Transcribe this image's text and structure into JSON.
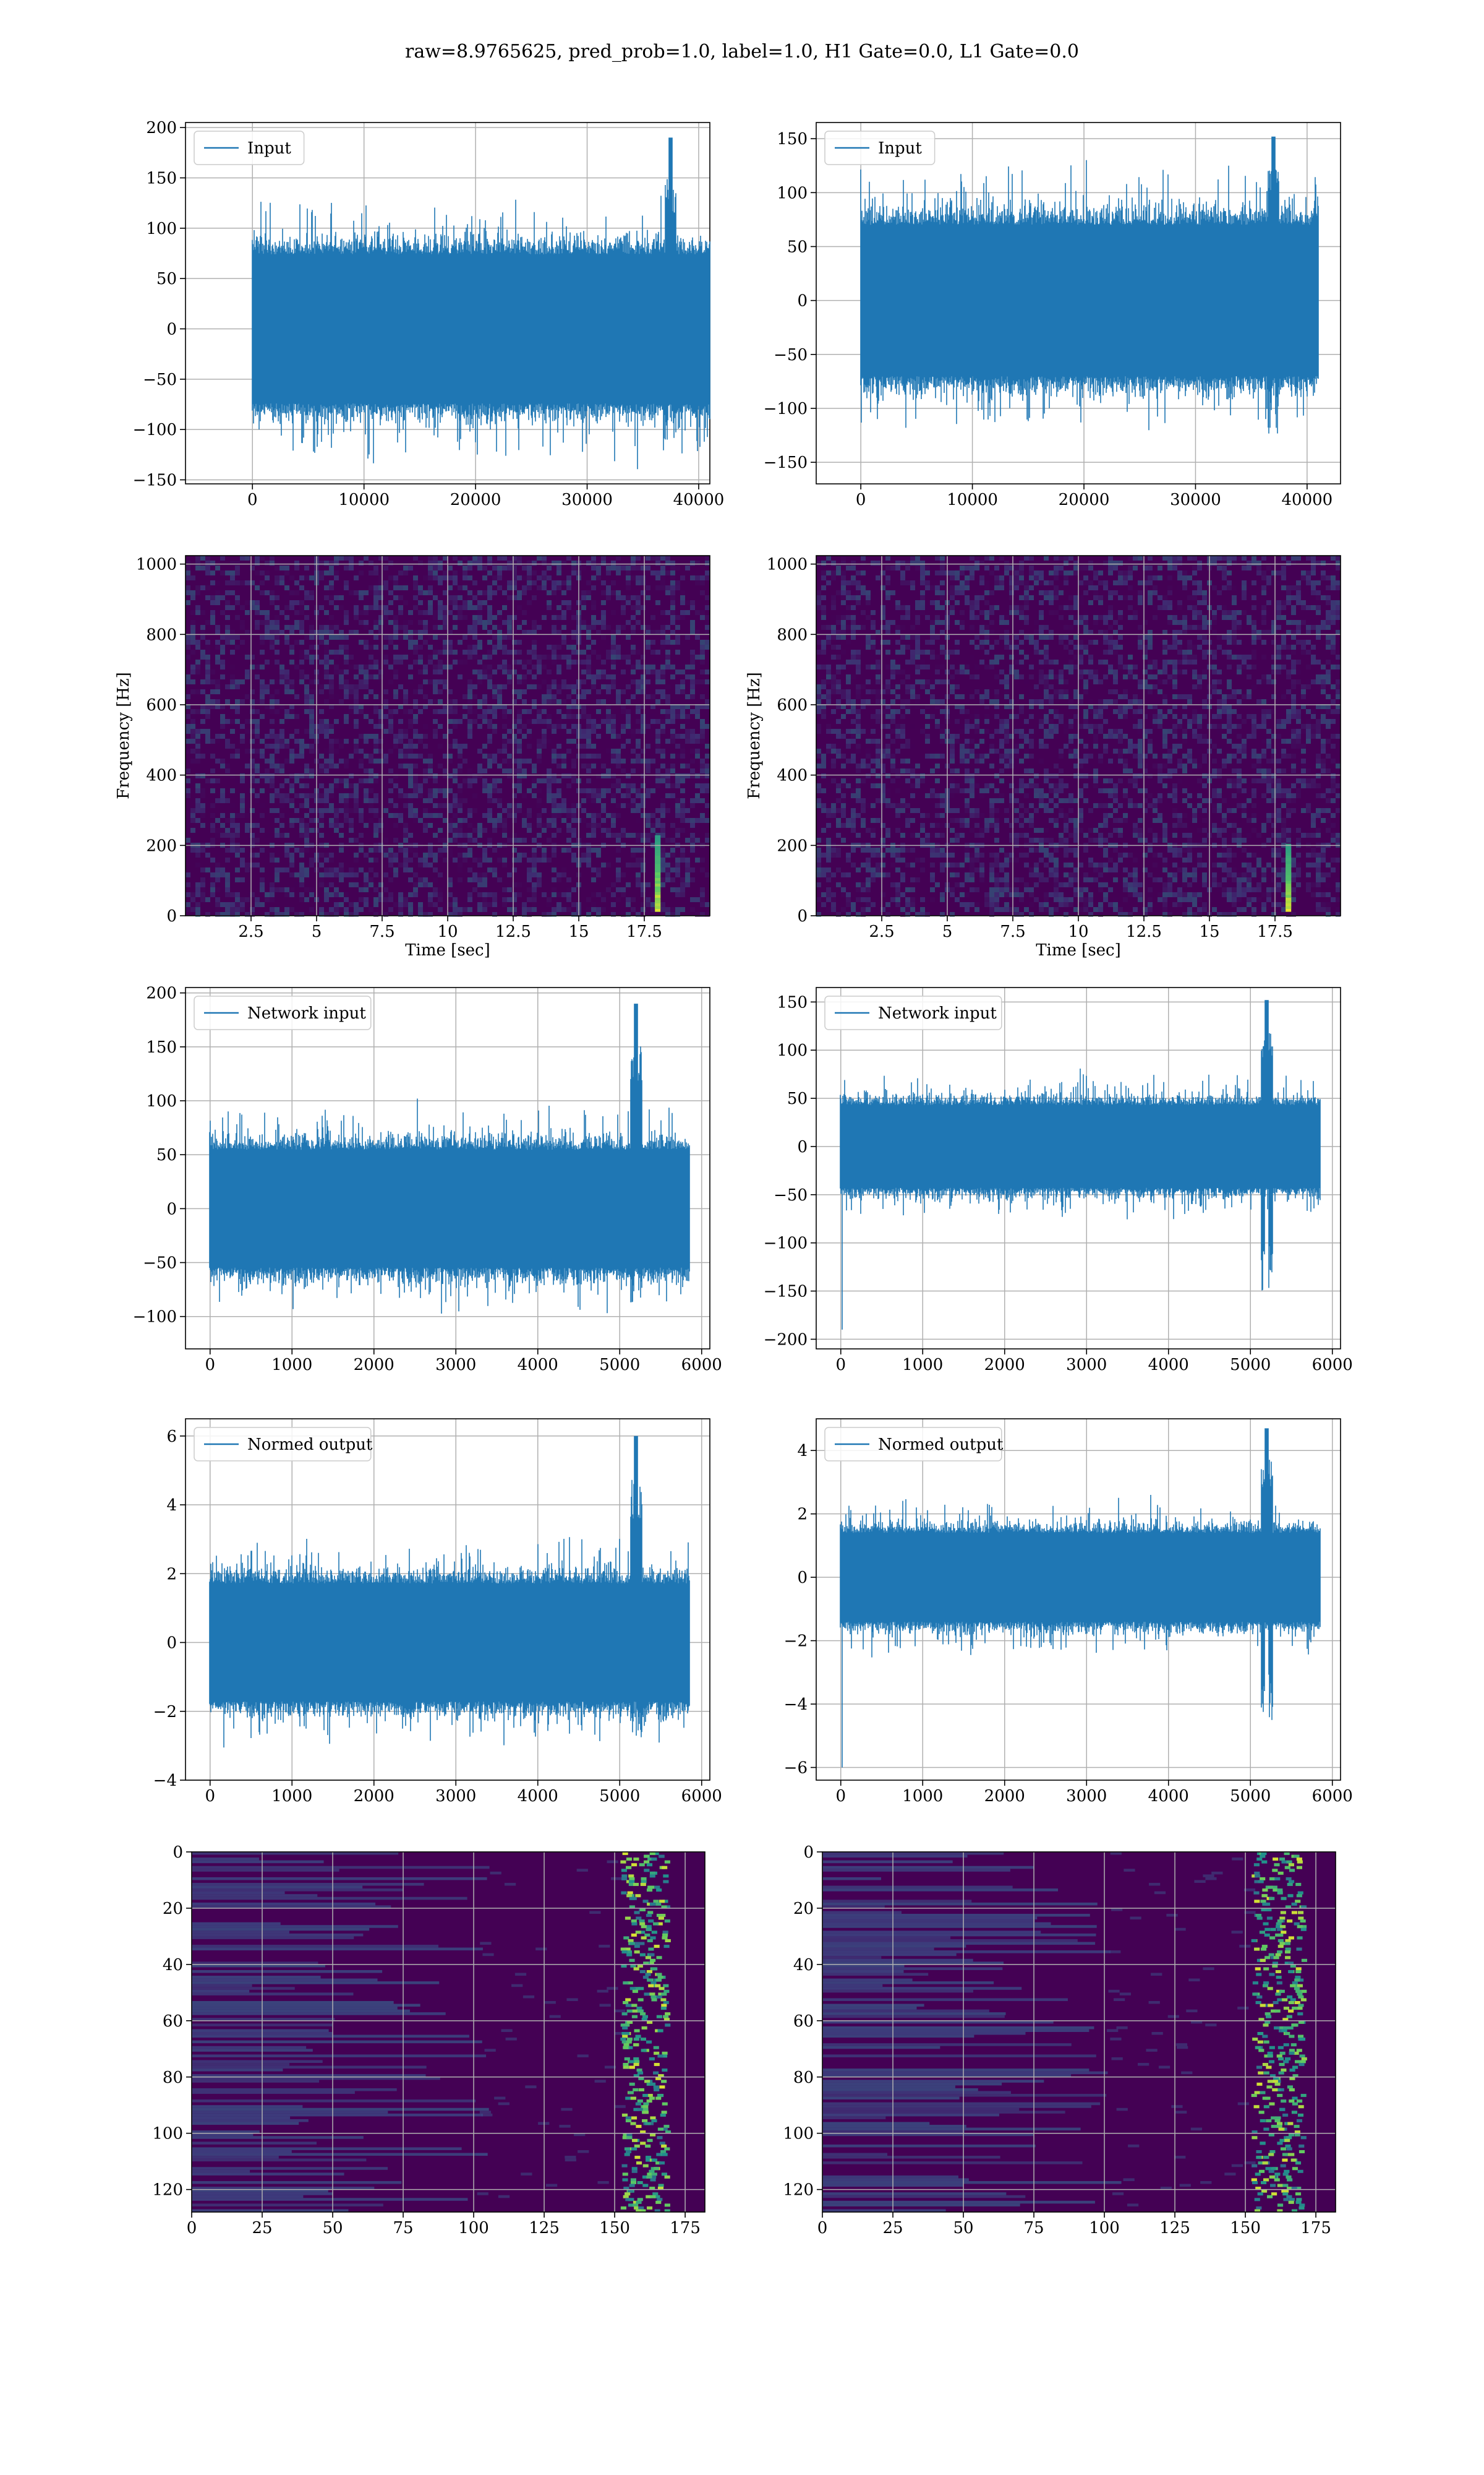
{
  "suptitle": "raw=8.9765625, pred_prob=1.0, label=1.0, H1 Gate=0.0, L1 Gate=0.0",
  "colors": {
    "series": "#1f77b4",
    "grid": "#b0b0b0",
    "spec_bg": "#440154",
    "spec_mid": "#3b528b",
    "spec_hi": "#21918c",
    "spec_peak": "#fde725"
  },
  "chart_data": [
    {
      "id": "h1-input",
      "type": "line",
      "xlim": [
        -6000,
        41000
      ],
      "ylim": [
        -154,
        205
      ],
      "xticks": [
        0,
        10000,
        20000,
        30000,
        40000
      ],
      "yticks": [
        -150,
        -100,
        -50,
        0,
        50,
        100,
        150,
        200
      ],
      "grid": true,
      "legend": "Input",
      "legend_loc": "upper-left",
      "signal": {
        "n_samples": 40960,
        "typical_min": -95,
        "typical_max": 95,
        "peak_max": 190,
        "peak_x": 37500,
        "min_value": -138
      },
      "xlabel": "",
      "ylabel": ""
    },
    {
      "id": "l1-input",
      "type": "line",
      "xlim": [
        -4000,
        43000
      ],
      "ylim": [
        -170,
        165
      ],
      "xticks": [
        0,
        10000,
        20000,
        30000,
        40000
      ],
      "yticks": [
        -150,
        -100,
        -50,
        0,
        50,
        100,
        150
      ],
      "grid": true,
      "legend": "Input",
      "legend_loc": "upper-left",
      "signal": {
        "n_samples": 40960,
        "typical_min": -90,
        "typical_max": 90,
        "peak_max": 152,
        "peak_x": 37000,
        "min_value": -160
      },
      "xlabel": "",
      "ylabel": ""
    },
    {
      "id": "h1-spectrogram",
      "type": "heatmap",
      "xlim": [
        0,
        20
      ],
      "ylim": [
        0,
        1024
      ],
      "xticks": [
        2.5,
        5.0,
        7.5,
        10.0,
        12.5,
        15.0,
        17.5
      ],
      "yticks": [
        0,
        200,
        400,
        600,
        800,
        1000
      ],
      "xlabel": "Time [sec]",
      "ylabel": "Frequency [Hz]",
      "grid": true,
      "feature": {
        "t": 18.0,
        "f_min": 20,
        "f_max": 220
      }
    },
    {
      "id": "l1-spectrogram",
      "type": "heatmap",
      "xlim": [
        0,
        20
      ],
      "ylim": [
        0,
        1024
      ],
      "xticks": [
        2.5,
        5.0,
        7.5,
        10.0,
        12.5,
        15.0,
        17.5
      ],
      "yticks": [
        0,
        200,
        400,
        600,
        800,
        1000
      ],
      "xlabel": "Time [sec]",
      "ylabel": "Frequency [Hz]",
      "grid": true,
      "feature": {
        "t": 18.0,
        "f_min": 20,
        "f_max": 200
      }
    },
    {
      "id": "h1-network-input",
      "type": "line",
      "xlim": [
        -300,
        6100
      ],
      "ylim": [
        -130,
        205
      ],
      "xticks": [
        0,
        1000,
        2000,
        3000,
        4000,
        5000,
        6000
      ],
      "yticks": [
        -100,
        -50,
        0,
        50,
        100,
        150,
        200
      ],
      "grid": true,
      "legend": "Network input",
      "legend_loc": "upper-left",
      "signal": {
        "n_samples": 5850,
        "typical_min": -70,
        "typical_max": 70,
        "peak_max": 190,
        "peak_x": 5200,
        "min_value": -118
      },
      "xlabel": "",
      "ylabel": ""
    },
    {
      "id": "l1-network-input",
      "type": "line",
      "xlim": [
        -300,
        6100
      ],
      "ylim": [
        -210,
        165
      ],
      "xticks": [
        0,
        1000,
        2000,
        3000,
        4000,
        5000,
        6000
      ],
      "yticks": [
        -200,
        -150,
        -100,
        -50,
        0,
        50,
        100,
        150
      ],
      "grid": true,
      "legend": "Network input",
      "legend_loc": "upper-left",
      "signal": {
        "n_samples": 5850,
        "typical_min": -55,
        "typical_max": 55,
        "peak_max": 152,
        "peak_x": 5200,
        "min_value": -190
      },
      "xlabel": "",
      "ylabel": ""
    },
    {
      "id": "h1-normed-output",
      "type": "line",
      "xlim": [
        -300,
        6100
      ],
      "ylim": [
        -4.0,
        6.5
      ],
      "xticks": [
        0,
        1000,
        2000,
        3000,
        4000,
        5000,
        6000
      ],
      "yticks": [
        -4,
        -2,
        0,
        2,
        4,
        6
      ],
      "grid": true,
      "legend": "Normed output",
      "legend_loc": "upper-left",
      "signal": {
        "n_samples": 5850,
        "typical_min": -2.2,
        "typical_max": 2.2,
        "peak_max": 6.0,
        "peak_x": 5200,
        "min_value": -3.5
      },
      "xlabel": "",
      "ylabel": ""
    },
    {
      "id": "l1-normed-output",
      "type": "line",
      "xlim": [
        -300,
        6100
      ],
      "ylim": [
        -6.4,
        5.0
      ],
      "xticks": [
        0,
        1000,
        2000,
        3000,
        4000,
        5000,
        6000
      ],
      "yticks": [
        -6,
        -4,
        -2,
        0,
        2,
        4
      ],
      "grid": true,
      "legend": "Normed output",
      "legend_loc": "upper-left",
      "signal": {
        "n_samples": 5850,
        "typical_min": -1.8,
        "typical_max": 1.8,
        "peak_max": 4.7,
        "peak_x": 5200,
        "min_value": -6.0
      },
      "xlabel": "",
      "ylabel": ""
    },
    {
      "id": "h1-feature-map",
      "type": "heatmap",
      "xlim": [
        0,
        182
      ],
      "ylim": [
        128,
        0
      ],
      "xticks": [
        0,
        25,
        50,
        75,
        100,
        125,
        150,
        175
      ],
      "yticks": [
        0,
        20,
        40,
        60,
        80,
        100,
        120
      ],
      "xlabel": "",
      "ylabel": "",
      "grid": true,
      "feature": {
        "x_min": 152,
        "x_max": 168
      }
    },
    {
      "id": "l1-feature-map",
      "type": "heatmap",
      "xlim": [
        0,
        182
      ],
      "ylim": [
        128,
        0
      ],
      "xticks": [
        0,
        25,
        50,
        75,
        100,
        125,
        150,
        175
      ],
      "yticks": [
        0,
        20,
        40,
        60,
        80,
        100,
        120
      ],
      "xlabel": "",
      "ylabel": "",
      "grid": true,
      "feature": {
        "x_min": 152,
        "x_max": 170
      }
    }
  ]
}
